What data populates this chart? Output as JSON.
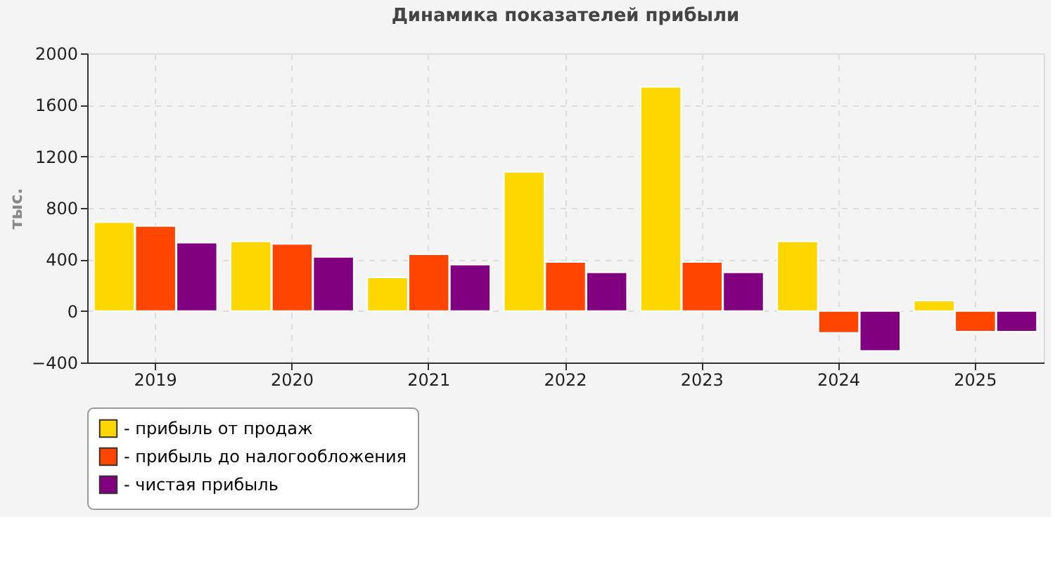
{
  "chart_data": {
    "type": "bar",
    "title": "Динамика показателей прибыли",
    "ylabel": "тыс.",
    "categories": [
      "2019",
      "2020",
      "2021",
      "2022",
      "2023",
      "2024",
      "2025"
    ],
    "series": [
      {
        "name": "- прибыль от продаж",
        "color": "#ffd700",
        "values": [
          690,
          540,
          260,
          1080,
          1740,
          540,
          80
        ]
      },
      {
        "name": "- прибыль до налогообложения",
        "color": "#ff4500",
        "values": [
          660,
          520,
          440,
          380,
          380,
          -170,
          -160
        ]
      },
      {
        "name": "- чистая прибыль",
        "color": "#800080",
        "values": [
          530,
          420,
          360,
          300,
          300,
          -310,
          -160
        ]
      }
    ],
    "ylim": [
      -400,
      2000
    ],
    "yticks": [
      -400,
      0,
      400,
      800,
      1200,
      1600,
      2000
    ],
    "grid": true,
    "legend": "bottom"
  }
}
